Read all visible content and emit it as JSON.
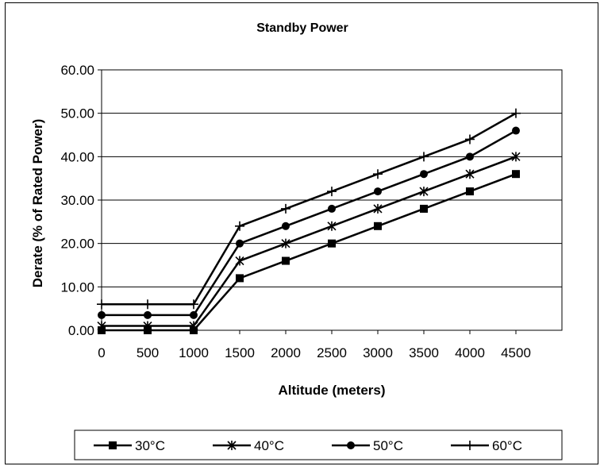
{
  "chart_data": {
    "type": "line",
    "title": "Standby Power",
    "xlabel": "Altitude (meters)",
    "ylabel": "Derate (% of Rated Power)",
    "x": [
      0,
      500,
      1000,
      1500,
      2000,
      2500,
      3000,
      3500,
      4000,
      4500
    ],
    "x_tick_labels": [
      "0",
      "500",
      "1000",
      "1500",
      "2000",
      "2500",
      "3000",
      "3500",
      "4000",
      "4500"
    ],
    "y_tick_labels": [
      "0.00",
      "10.00",
      "20.00",
      "30.00",
      "40.00",
      "50.00",
      "60.00"
    ],
    "ylim": [
      0,
      60
    ],
    "grid": "horizontal",
    "legend_position": "bottom",
    "series": [
      {
        "name": "30°C",
        "marker": "square",
        "values": [
          0,
          0,
          0,
          12,
          16,
          20,
          24,
          28,
          32,
          36
        ]
      },
      {
        "name": "40°C",
        "marker": "asterisk",
        "values": [
          1,
          1,
          1,
          16,
          20,
          24,
          28,
          32,
          36,
          40
        ]
      },
      {
        "name": "50°C",
        "marker": "circle",
        "values": [
          3.5,
          3.5,
          3.5,
          20,
          24,
          28,
          32,
          36,
          40,
          46
        ]
      },
      {
        "name": "60°C",
        "marker": "plus",
        "values": [
          6,
          6,
          6,
          24,
          28,
          32,
          36,
          40,
          44,
          50
        ]
      }
    ],
    "line_color": "#000000"
  }
}
